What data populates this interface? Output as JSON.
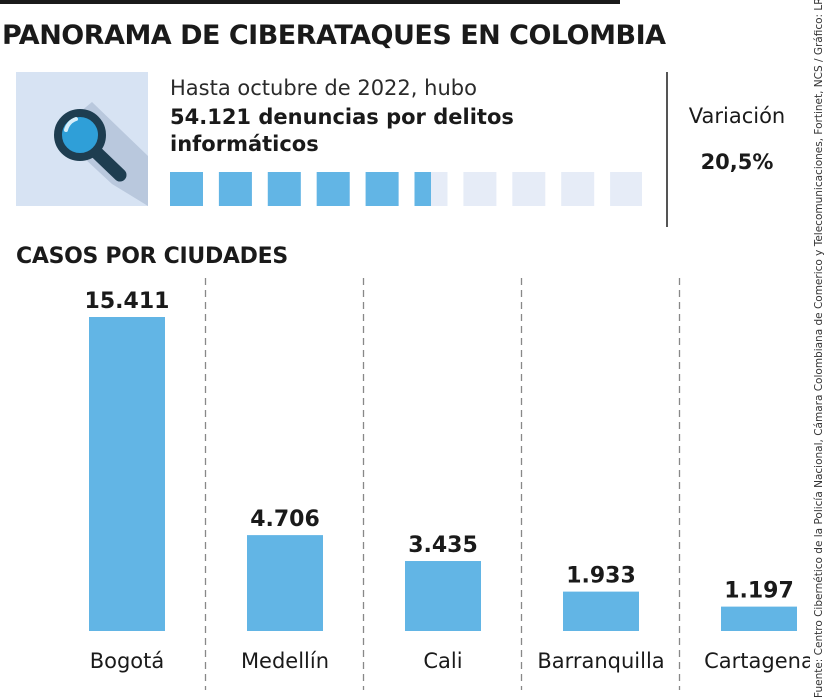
{
  "title": "PANORAMA DE CIBERATAQUES EN COLOMBIA",
  "summary": {
    "intro": "Hasta octubre de 2022, hubo",
    "headline": "54.121 denuncias por delitos informáticos",
    "icon": "magnifier-icon",
    "progress": {
      "total_squares": 11,
      "filled": 5.5
    }
  },
  "variation": {
    "label": "Variación",
    "value": "20,5%"
  },
  "source": "Fuente: Centro Cibernético de la Policía Nacional, Cámara Colombiana de Comerico y Telecomunicaciones, Fortinet, NCS / Gráfico: LR-AL",
  "colors": {
    "bar": "#62b5e5",
    "square_filled": "#62b5e5",
    "square_empty": "#e6ecf7",
    "icon_bg": "#d7e3f3",
    "divider": "#888888"
  },
  "chart_data": {
    "type": "bar",
    "title": "CASOS POR CIUDADES",
    "categories": [
      "Bogotá",
      "Medellín",
      "Cali",
      "Barranquilla",
      "Cartagena"
    ],
    "values": [
      15411,
      4706,
      3435,
      1933,
      1197
    ],
    "value_labels": [
      "15.411",
      "4.706",
      "3.435",
      "1.933",
      "1.197"
    ],
    "xlabel": "",
    "ylabel": "",
    "grid": false
  }
}
